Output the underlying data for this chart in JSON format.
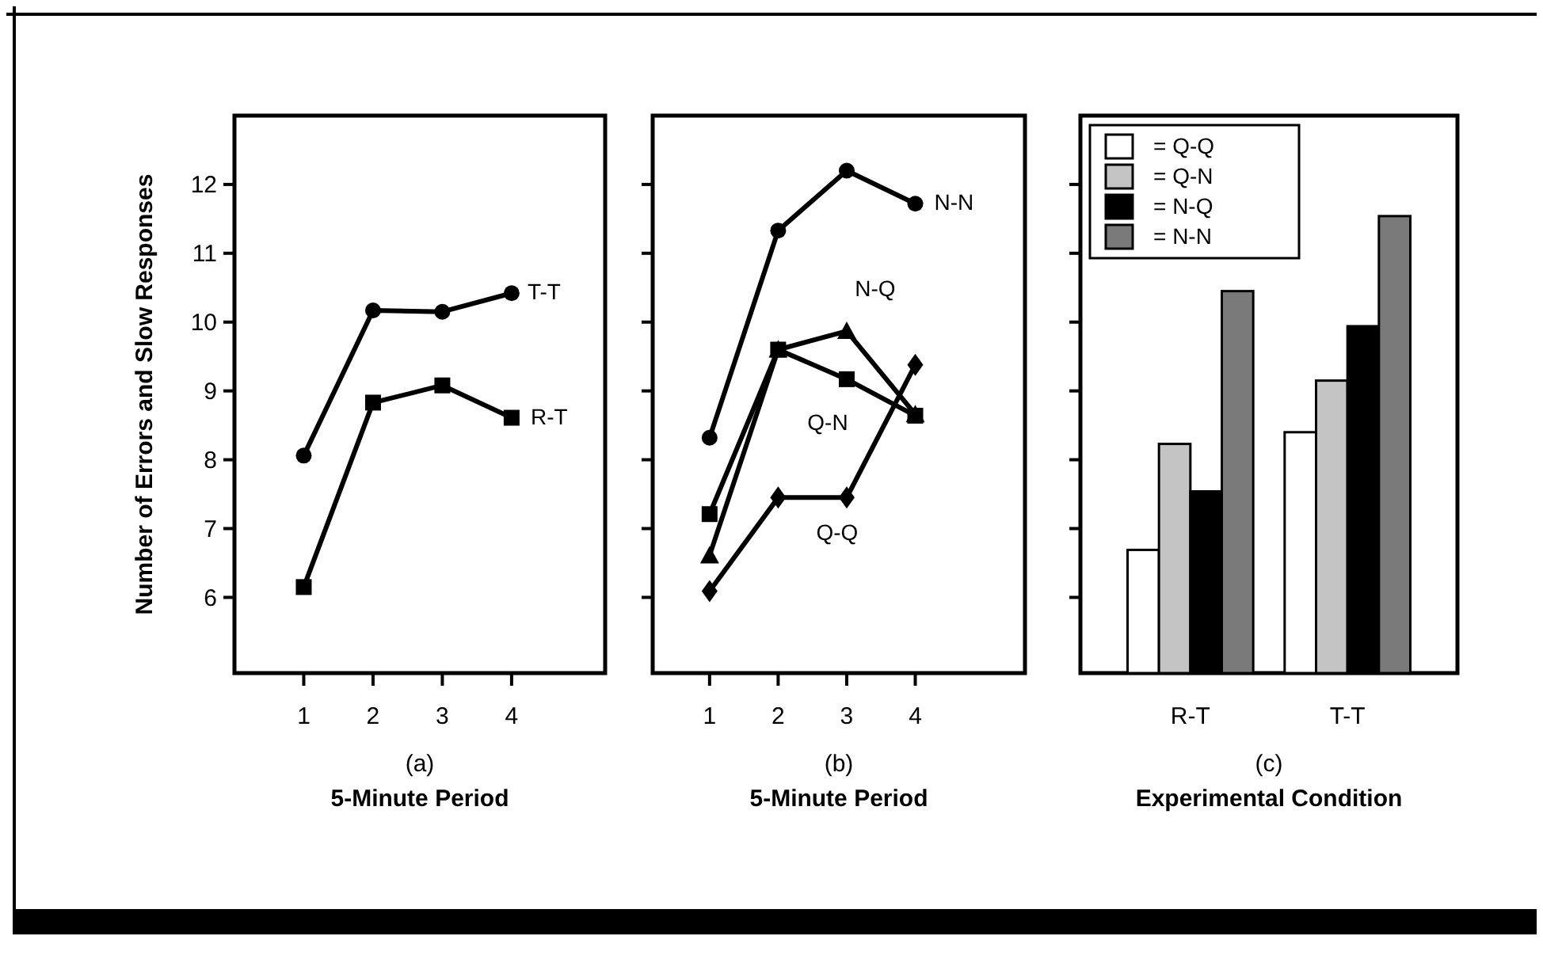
{
  "chart_data": [
    {
      "type": "line",
      "xlabel": "5-Minute Period",
      "ylabel": "Number of Errors and Slow Responses",
      "annotations": [
        "(a)"
      ],
      "x": [
        1,
        2,
        3,
        4
      ],
      "xlim": [
        0,
        5.35
      ],
      "xticks": [
        1,
        2,
        3,
        4
      ],
      "ylim": [
        4.9,
        13
      ],
      "yticks": [
        6,
        7,
        8,
        9,
        10,
        11,
        12
      ],
      "grid": false,
      "legend": false,
      "line_style": "solid",
      "series": [
        {
          "name": "T-T",
          "color": "#000000",
          "marker": "circle",
          "values": [
            8.06,
            10.17,
            10.15,
            10.42
          ]
        },
        {
          "name": "R-T",
          "color": "#000000",
          "marker": "square",
          "values": [
            6.15,
            8.83,
            9.08,
            8.61
          ]
        }
      ]
    },
    {
      "type": "line",
      "xlabel": "5-Minute Period",
      "annotations": [
        "(b)"
      ],
      "x": [
        1,
        2,
        3,
        4
      ],
      "xlim": [
        0.17,
        5.6
      ],
      "xticks": [
        1,
        2,
        3,
        4
      ],
      "ylim": [
        4.9,
        13
      ],
      "yticks": [
        {
          "value": 6,
          "label": null
        },
        {
          "value": 7,
          "label": null
        },
        {
          "value": 8,
          "label": null
        },
        {
          "value": 9,
          "label": null
        },
        {
          "value": 10,
          "label": null
        },
        {
          "value": 11,
          "label": null
        },
        {
          "value": 12,
          "label": null
        }
      ],
      "tick_labels": "x",
      "grid": false,
      "legend": false,
      "line_style": "solid",
      "series": [
        {
          "name": "N-N",
          "color": "#000000",
          "marker": "circle",
          "values": [
            8.32,
            11.33,
            12.2,
            11.72
          ]
        },
        {
          "name": "N-Q",
          "color": "#000000",
          "marker": "triangle",
          "values": [
            6.61,
            9.6,
            9.87,
            8.66
          ]
        },
        {
          "name": "Q-N",
          "color": "#000000",
          "marker": "square",
          "values": [
            7.21,
            9.6,
            9.17,
            8.64
          ]
        },
        {
          "name": "Q-Q",
          "color": "#000000",
          "marker": "diamond",
          "values": [
            6.09,
            7.45,
            7.45,
            9.38
          ]
        }
      ]
    },
    {
      "type": "bar",
      "xlabel": "Experimental Condition",
      "annotations": [
        "(c)"
      ],
      "categories": [
        "R-T",
        "T-T"
      ],
      "ylim": [
        4.9,
        13
      ],
      "yticks": [
        {
          "value": 6,
          "label": null
        },
        {
          "value": 7,
          "label": null
        },
        {
          "value": 8,
          "label": null
        },
        {
          "value": 9,
          "label": null
        },
        {
          "value": 10,
          "label": null
        },
        {
          "value": 11,
          "label": null
        },
        {
          "value": 12,
          "label": null
        }
      ],
      "tick_labels": "x",
      "grid": false,
      "legend": "top left",
      "series": [
        {
          "name": "= Q-Q",
          "color": "#ffffff",
          "values": [
            6.69,
            8.4
          ]
        },
        {
          "name": "= Q-N",
          "color": "#c4c4c4",
          "values": [
            8.23,
            9.15
          ]
        },
        {
          "name": "= N-Q",
          "color": "#000000",
          "values": [
            7.54,
            9.94
          ]
        },
        {
          "name": "= N-N",
          "color": "#7a7a7a",
          "values": [
            10.45,
            11.54
          ]
        }
      ]
    }
  ]
}
